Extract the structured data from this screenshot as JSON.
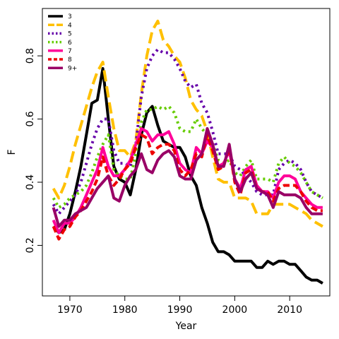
{
  "chart_data": {
    "type": "line",
    "title": "",
    "xlabel": "Year",
    "ylabel": "F",
    "xlim": [
      1965,
      2017.3
    ],
    "ylim": [
      0.04,
      0.95
    ],
    "xticks": [
      1970,
      1980,
      1990,
      2000,
      2010
    ],
    "yticks": [
      0.2,
      0.4,
      0.6,
      0.8
    ],
    "grid": false,
    "legend_position": "top-left",
    "x": [
      1967,
      1968,
      1969,
      1970,
      1971,
      1972,
      1973,
      1974,
      1975,
      1976,
      1977,
      1978,
      1979,
      1980,
      1981,
      1982,
      1983,
      1984,
      1985,
      1986,
      1987,
      1988,
      1989,
      1990,
      1991,
      1992,
      1993,
      1994,
      1995,
      1996,
      1997,
      1998,
      1999,
      2000,
      2001,
      2002,
      2003,
      2004,
      2005,
      2006,
      2007,
      2008,
      2009,
      2010,
      2011,
      2012,
      2013,
      2014,
      2015,
      2016
    ],
    "series": [
      {
        "name": "3",
        "color": "#000000",
        "dash": "solid",
        "values": [
          0.26,
          0.24,
          0.25,
          0.3,
          0.37,
          0.45,
          0.55,
          0.65,
          0.66,
          0.76,
          0.6,
          0.45,
          0.41,
          0.4,
          0.36,
          0.44,
          0.55,
          0.62,
          0.64,
          0.58,
          0.53,
          0.52,
          0.51,
          0.51,
          0.48,
          0.42,
          0.39,
          0.32,
          0.27,
          0.21,
          0.18,
          0.18,
          0.17,
          0.15,
          0.15,
          0.15,
          0.15,
          0.13,
          0.13,
          0.15,
          0.14,
          0.15,
          0.15,
          0.14,
          0.14,
          0.12,
          0.1,
          0.09,
          0.09,
          0.08
        ]
      },
      {
        "name": "4",
        "color": "#ffc000",
        "dash": "long",
        "values": [
          0.38,
          0.35,
          0.39,
          0.45,
          0.52,
          0.58,
          0.64,
          0.7,
          0.75,
          0.78,
          0.67,
          0.57,
          0.5,
          0.5,
          0.48,
          0.53,
          0.68,
          0.8,
          0.88,
          0.91,
          0.85,
          0.83,
          0.8,
          0.78,
          0.73,
          0.66,
          0.63,
          0.61,
          0.56,
          0.48,
          0.41,
          0.4,
          0.4,
          0.35,
          0.35,
          0.35,
          0.34,
          0.3,
          0.3,
          0.3,
          0.33,
          0.33,
          0.33,
          0.33,
          0.32,
          0.31,
          0.3,
          0.28,
          0.27,
          0.26
        ]
      },
      {
        "name": "5",
        "color": "#6600aa",
        "dash": "dot",
        "values": [
          0.33,
          0.3,
          0.32,
          0.34,
          0.36,
          0.4,
          0.46,
          0.52,
          0.57,
          0.6,
          0.6,
          0.5,
          0.46,
          0.46,
          0.45,
          0.52,
          0.67,
          0.76,
          0.8,
          0.82,
          0.81,
          0.81,
          0.79,
          0.76,
          0.72,
          0.7,
          0.71,
          0.65,
          0.62,
          0.56,
          0.49,
          0.49,
          0.49,
          0.45,
          0.44,
          0.42,
          0.4,
          0.37,
          0.36,
          0.36,
          0.36,
          0.44,
          0.46,
          0.47,
          0.46,
          0.44,
          0.4,
          0.37,
          0.36,
          0.35
        ]
      },
      {
        "name": "6",
        "color": "#66cc00",
        "dash": "dot",
        "values": [
          0.35,
          0.32,
          0.33,
          0.35,
          0.36,
          0.37,
          0.39,
          0.43,
          0.48,
          0.52,
          0.55,
          0.44,
          0.42,
          0.41,
          0.41,
          0.49,
          0.59,
          0.63,
          0.63,
          0.64,
          0.63,
          0.64,
          0.62,
          0.57,
          0.56,
          0.56,
          0.6,
          0.57,
          0.55,
          0.52,
          0.47,
          0.46,
          0.47,
          0.43,
          0.42,
          0.45,
          0.47,
          0.41,
          0.41,
          0.41,
          0.4,
          0.46,
          0.48,
          0.46,
          0.45,
          0.43,
          0.4,
          0.37,
          0.36,
          0.35
        ]
      },
      {
        "name": "7",
        "color": "#ff0099",
        "dash": "solid",
        "values": [
          0.28,
          0.24,
          0.27,
          0.27,
          0.29,
          0.32,
          0.36,
          0.4,
          0.44,
          0.51,
          0.45,
          0.42,
          0.42,
          0.44,
          0.47,
          0.52,
          0.57,
          0.56,
          0.53,
          0.55,
          0.55,
          0.56,
          0.52,
          0.46,
          0.44,
          0.43,
          0.51,
          0.49,
          0.53,
          0.51,
          0.45,
          0.46,
          0.5,
          0.41,
          0.38,
          0.44,
          0.45,
          0.39,
          0.37,
          0.37,
          0.35,
          0.4,
          0.42,
          0.42,
          0.41,
          0.37,
          0.35,
          0.33,
          0.32,
          0.32
        ]
      },
      {
        "name": "8",
        "color": "#ee0000",
        "dash": "dash",
        "values": [
          0.26,
          0.22,
          0.25,
          0.26,
          0.29,
          0.31,
          0.34,
          0.37,
          0.41,
          0.48,
          0.42,
          0.39,
          0.41,
          0.44,
          0.46,
          0.51,
          0.55,
          0.54,
          0.49,
          0.51,
          0.52,
          0.52,
          0.5,
          0.44,
          0.42,
          0.44,
          0.49,
          0.48,
          0.55,
          0.5,
          0.44,
          0.45,
          0.51,
          0.4,
          0.36,
          0.43,
          0.44,
          0.38,
          0.37,
          0.37,
          0.34,
          0.38,
          0.39,
          0.39,
          0.39,
          0.37,
          0.34,
          0.32,
          0.31,
          0.31
        ]
      },
      {
        "name": "9+",
        "color": "#990066",
        "dash": "solid",
        "values": [
          0.32,
          0.26,
          0.28,
          0.28,
          0.3,
          0.31,
          0.32,
          0.35,
          0.38,
          0.4,
          0.42,
          0.35,
          0.34,
          0.39,
          0.42,
          0.44,
          0.49,
          0.44,
          0.43,
          0.47,
          0.49,
          0.5,
          0.48,
          0.42,
          0.41,
          0.41,
          0.47,
          0.49,
          0.57,
          0.52,
          0.45,
          0.45,
          0.52,
          0.41,
          0.37,
          0.41,
          0.43,
          0.38,
          0.37,
          0.36,
          0.32,
          0.37,
          0.36,
          0.36,
          0.36,
          0.35,
          0.32,
          0.3,
          0.3,
          0.3
        ]
      }
    ]
  }
}
